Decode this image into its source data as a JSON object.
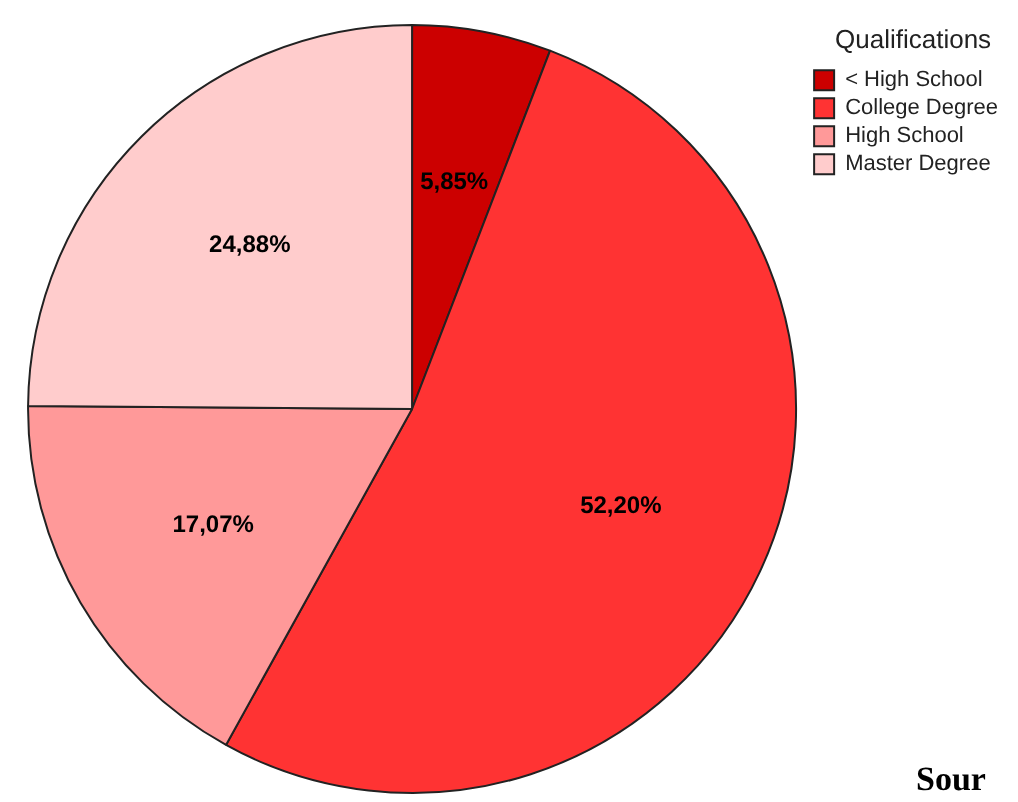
{
  "chart_data": {
    "type": "pie",
    "categories": [
      "< High School",
      "College Degree",
      "High School",
      "Master Degree"
    ],
    "values": [
      5.85,
      52.2,
      17.07,
      24.88
    ],
    "colors": [
      "#cc0000",
      "#ff3333",
      "#ff9999",
      "#ffcccc"
    ],
    "value_labels": [
      "5,85%",
      "52,20%",
      "17,07%",
      "24,88%"
    ],
    "legend": "top right",
    "legend_title": "Qualifications",
    "annotations": [
      "Sour"
    ]
  }
}
